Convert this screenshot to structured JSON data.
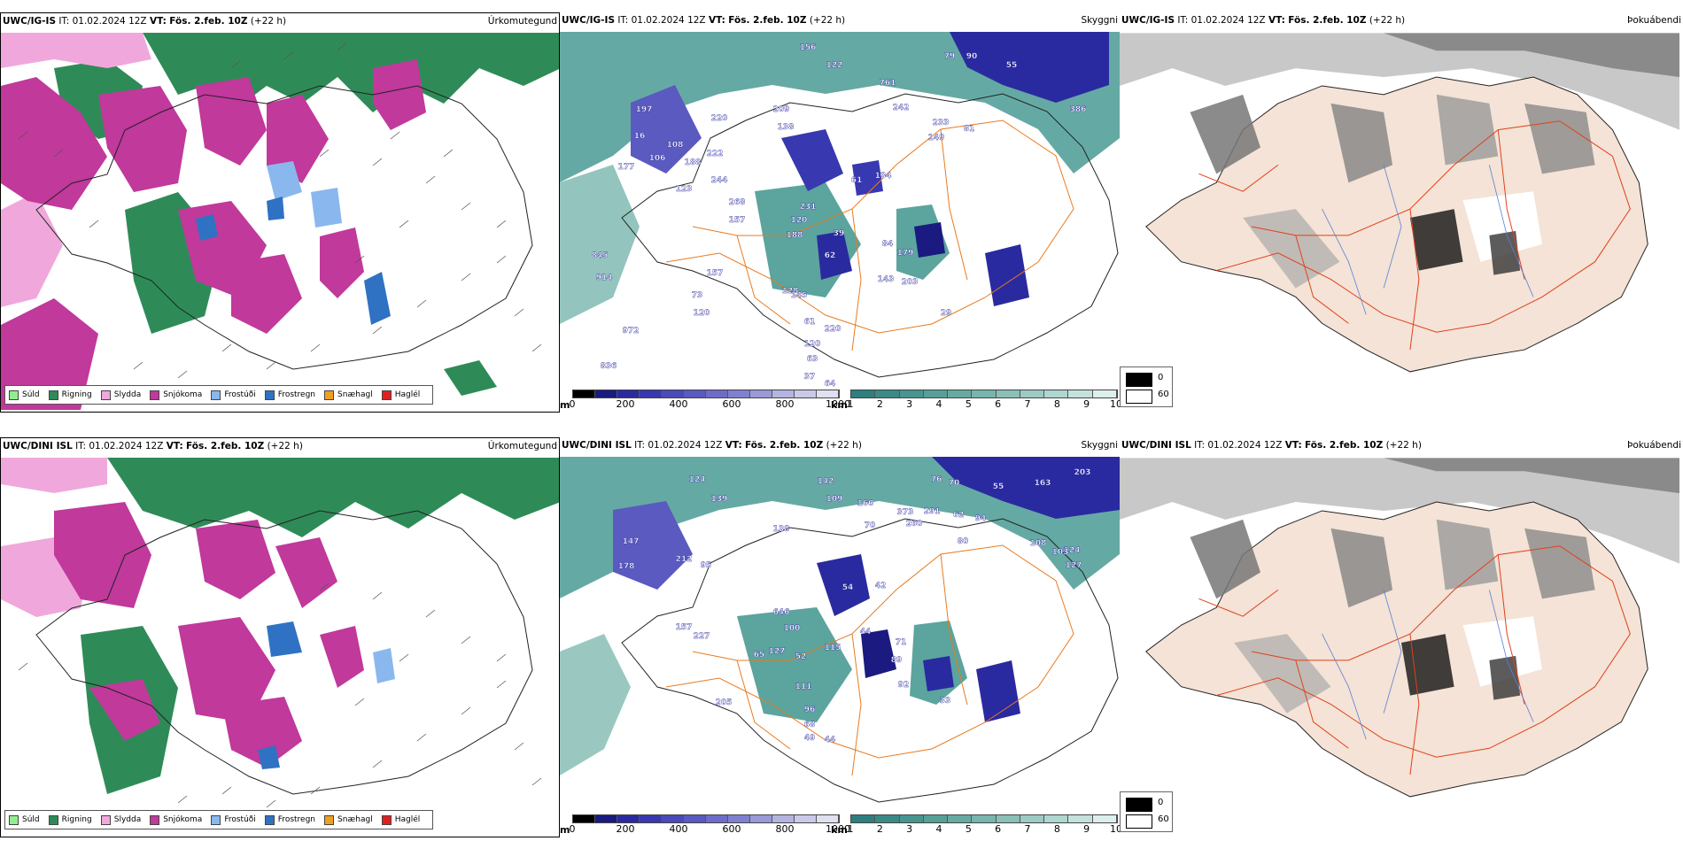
{
  "rows": [
    {
      "id": "top",
      "model": "UWC/IG-IS",
      "it_label": "IT:",
      "it_value": "01.02.2024 12Z",
      "vt_label": "VT:",
      "vt_value": "Fös. 2.feb. 10Z",
      "lead": "(+22 h)",
      "titles": [
        "Úrkomutegund",
        "Skyggni",
        "Þokuábendi"
      ]
    },
    {
      "id": "bottom",
      "model": "UWC/DINI ISL",
      "it_label": "IT:",
      "it_value": "01.02.2024 12Z",
      "vt_label": "VT:",
      "vt_value": "Fös. 2.feb. 10Z",
      "lead": "(+22 h)",
      "titles": [
        "Úrkomutegund",
        "Skyggni",
        "Þokuábendi"
      ]
    }
  ],
  "precip_legend": [
    {
      "label": "Súld",
      "color": "#90ee90"
    },
    {
      "label": "Rigning",
      "color": "#2e8b57"
    },
    {
      "label": "Slydda",
      "color": "#f0a8dc"
    },
    {
      "label": "Snjókoma",
      "color": "#c0399b"
    },
    {
      "label": "Frostúði",
      "color": "#8ab8ee"
    },
    {
      "label": "Frostregn",
      "color": "#2f72c4"
    },
    {
      "label": "Snæhagl",
      "color": "#f0a020"
    },
    {
      "label": "Haglél",
      "color": "#e02020"
    }
  ],
  "visibility_bars": {
    "m_unit": "m",
    "m_ticks": [
      "0",
      "200",
      "400",
      "600",
      "800",
      "1000"
    ],
    "m_colors": [
      "#000000",
      "#1a1a80",
      "#2a2aa0",
      "#3838b0",
      "#4a4ab8",
      "#5a5ac0",
      "#6d6dc8",
      "#8080d0",
      "#9a9ad8",
      "#b4b4e0",
      "#cacae8",
      "#e0e0f2"
    ],
    "km_unit": "km",
    "km_ticks": [
      "1",
      "2",
      "3",
      "4",
      "5",
      "6",
      "7",
      "8",
      "9",
      "10"
    ],
    "km_colors": [
      "#2e7f7f",
      "#3a8a88",
      "#489590",
      "#56a098",
      "#66aaa2",
      "#78b5ac",
      "#8ac0b8",
      "#9ccbc4",
      "#b0d6d0",
      "#c4e2dc",
      "#dcefec"
    ]
  },
  "fog_legend": [
    {
      "label": "0",
      "color": "#000000"
    },
    {
      "label": "60",
      "color": "#ffffff"
    }
  ],
  "vis_labels_top": [
    "79",
    "90",
    "55",
    "122",
    "156",
    "761",
    "386",
    "197",
    "220",
    "209",
    "138",
    "242",
    "233",
    "149",
    "81",
    "16",
    "108",
    "188",
    "222",
    "106",
    "61",
    "134",
    "177",
    "123",
    "244",
    "268",
    "157",
    "120",
    "231",
    "188",
    "39",
    "62",
    "84",
    "179",
    "143",
    "203",
    "128",
    "145",
    "29",
    "61",
    "220",
    "120",
    "63",
    "37",
    "64",
    "157",
    "73",
    "120",
    "972",
    "845",
    "836",
    "914"
  ],
  "vis_labels_bottom": [
    "76",
    "70",
    "55",
    "163",
    "203",
    "142",
    "124",
    "139",
    "109",
    "160",
    "373",
    "291",
    "260",
    "108",
    "62",
    "94",
    "124",
    "103",
    "127",
    "80",
    "70",
    "54",
    "42",
    "44",
    "100",
    "127",
    "65",
    "52",
    "115",
    "71",
    "89",
    "92",
    "111",
    "96",
    "68",
    "49",
    "44",
    "33",
    "205",
    "227",
    "157",
    "212",
    "95",
    "138",
    "147",
    "178",
    "646"
  ]
}
